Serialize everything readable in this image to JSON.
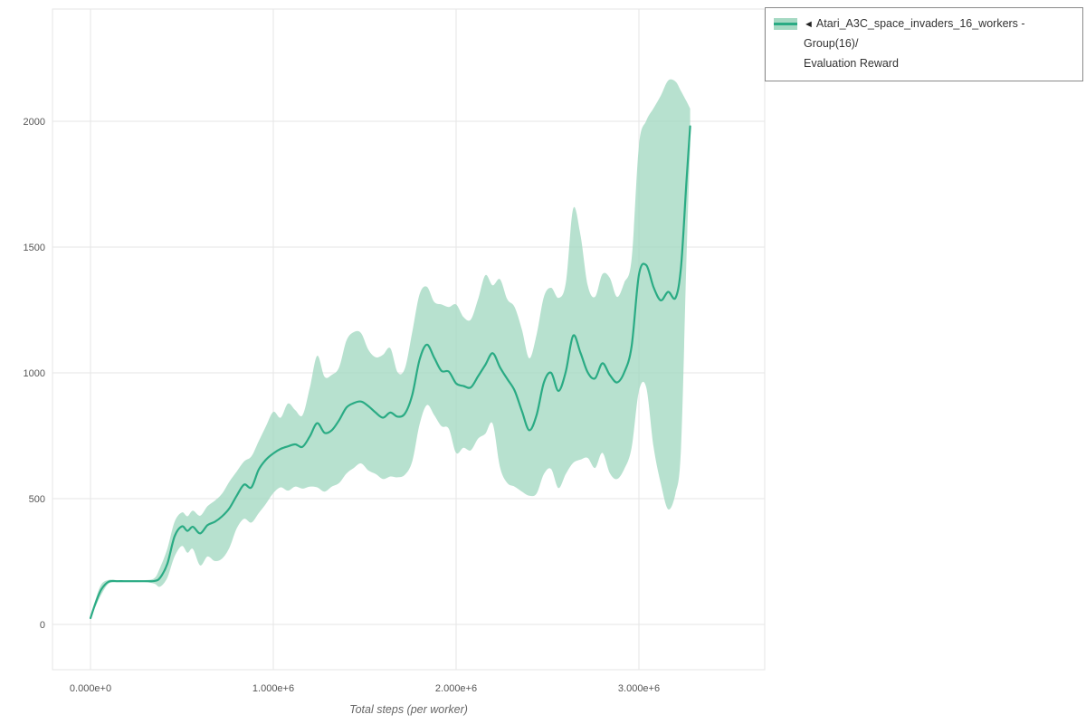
{
  "legend": {
    "collapse_icon": "◄",
    "label_line1": "Atari_A3C_space_invaders_16_workers - Group(16)/",
    "label_line2": "Evaluation Reward"
  },
  "chart_data": {
    "type": "line",
    "title": "",
    "xlabel": "Total steps (per worker)",
    "ylabel": "",
    "series_label": "Atari_A3C_space_invaders_16_workers - Group(16)/Evaluation Reward",
    "legend_position": "top-right-outside",
    "grid": true,
    "colors": {
      "line": "#2aab84",
      "band": "#a5d9c3",
      "grid": "#e6e6e6",
      "tick_text": "#555555",
      "axis_label": "#666666"
    },
    "xticks": {
      "values": [
        0,
        1000000,
        2000000,
        3000000
      ],
      "labels": [
        "0.000e+0",
        "1.000e+6",
        "2.000e+6",
        "3.000e+6"
      ]
    },
    "yticks": {
      "values": [
        0,
        500,
        1000,
        1500,
        2000
      ],
      "labels": [
        "0",
        "500",
        "1000",
        "1500",
        "2000"
      ]
    },
    "xlim": [
      -210000,
      3690000
    ],
    "ylim": [
      -180,
      2445
    ],
    "x": [
      0,
      30000,
      60000,
      100000,
      150000,
      200000,
      250000,
      300000,
      350000,
      380000,
      420000,
      460000,
      500000,
      530000,
      560000,
      600000,
      640000,
      680000,
      720000,
      760000,
      800000,
      840000,
      880000,
      920000,
      960000,
      1000000,
      1040000,
      1080000,
      1120000,
      1160000,
      1200000,
      1240000,
      1280000,
      1320000,
      1360000,
      1400000,
      1440000,
      1480000,
      1520000,
      1560000,
      1600000,
      1640000,
      1680000,
      1720000,
      1760000,
      1800000,
      1840000,
      1880000,
      1920000,
      1960000,
      2000000,
      2040000,
      2080000,
      2120000,
      2160000,
      2200000,
      2240000,
      2280000,
      2320000,
      2360000,
      2400000,
      2440000,
      2480000,
      2520000,
      2560000,
      2600000,
      2640000,
      2680000,
      2720000,
      2760000,
      2800000,
      2840000,
      2880000,
      2920000,
      2960000,
      3000000,
      3040000,
      3080000,
      3120000,
      3160000,
      3200000,
      3230000,
      3260000,
      3280000
    ],
    "series": [
      {
        "name": "mean",
        "values": [
          25,
          90,
          140,
          170,
          172,
          172,
          172,
          172,
          173,
          185,
          240,
          350,
          390,
          372,
          388,
          362,
          395,
          408,
          430,
          462,
          512,
          556,
          545,
          615,
          655,
          680,
          698,
          708,
          716,
          706,
          748,
          800,
          762,
          772,
          812,
          862,
          880,
          886,
          868,
          842,
          822,
          842,
          826,
          838,
          912,
          1052,
          1112,
          1060,
          1008,
          1005,
          958,
          948,
          942,
          986,
          1032,
          1078,
          1022,
          975,
          930,
          848,
          772,
          832,
          962,
          1000,
          928,
          1005,
          1148,
          1080,
          1002,
          978,
          1038,
          992,
          962,
          1002,
          1105,
          1390,
          1428,
          1340,
          1288,
          1322,
          1298,
          1420,
          1760,
          1980
        ]
      },
      {
        "name": "lower_band",
        "values": [
          25,
          75,
          120,
          163,
          168,
          168,
          168,
          168,
          162,
          150,
          185,
          270,
          312,
          285,
          300,
          235,
          270,
          252,
          262,
          305,
          382,
          420,
          405,
          442,
          480,
          522,
          545,
          532,
          548,
          540,
          548,
          545,
          528,
          548,
          562,
          600,
          622,
          640,
          612,
          598,
          578,
          588,
          585,
          595,
          648,
          795,
          872,
          832,
          788,
          778,
          682,
          702,
          692,
          738,
          758,
          798,
          625,
          562,
          548,
          528,
          512,
          520,
          598,
          618,
          542,
          598,
          642,
          655,
          662,
          622,
          682,
          602,
          578,
          618,
          702,
          928,
          942,
          705,
          560,
          458,
          520,
          700,
          1450,
          1900
        ]
      },
      {
        "name": "upper_band",
        "values": [
          25,
          105,
          160,
          177,
          176,
          176,
          176,
          176,
          184,
          225,
          300,
          408,
          445,
          430,
          452,
          432,
          470,
          492,
          520,
          568,
          608,
          648,
          668,
          728,
          788,
          845,
          822,
          878,
          852,
          832,
          942,
          1068,
          985,
          992,
          1022,
          1128,
          1162,
          1158,
          1092,
          1062,
          1072,
          1098,
          1002,
          1018,
          1162,
          1312,
          1342,
          1282,
          1272,
          1262,
          1272,
          1222,
          1212,
          1292,
          1388,
          1348,
          1372,
          1292,
          1262,
          1172,
          1058,
          1152,
          1302,
          1338,
          1298,
          1358,
          1652,
          1548,
          1348,
          1302,
          1392,
          1378,
          1302,
          1358,
          1452,
          1902,
          2002,
          2052,
          2102,
          2162,
          2158,
          2120,
          2080,
          2050
        ]
      }
    ]
  }
}
